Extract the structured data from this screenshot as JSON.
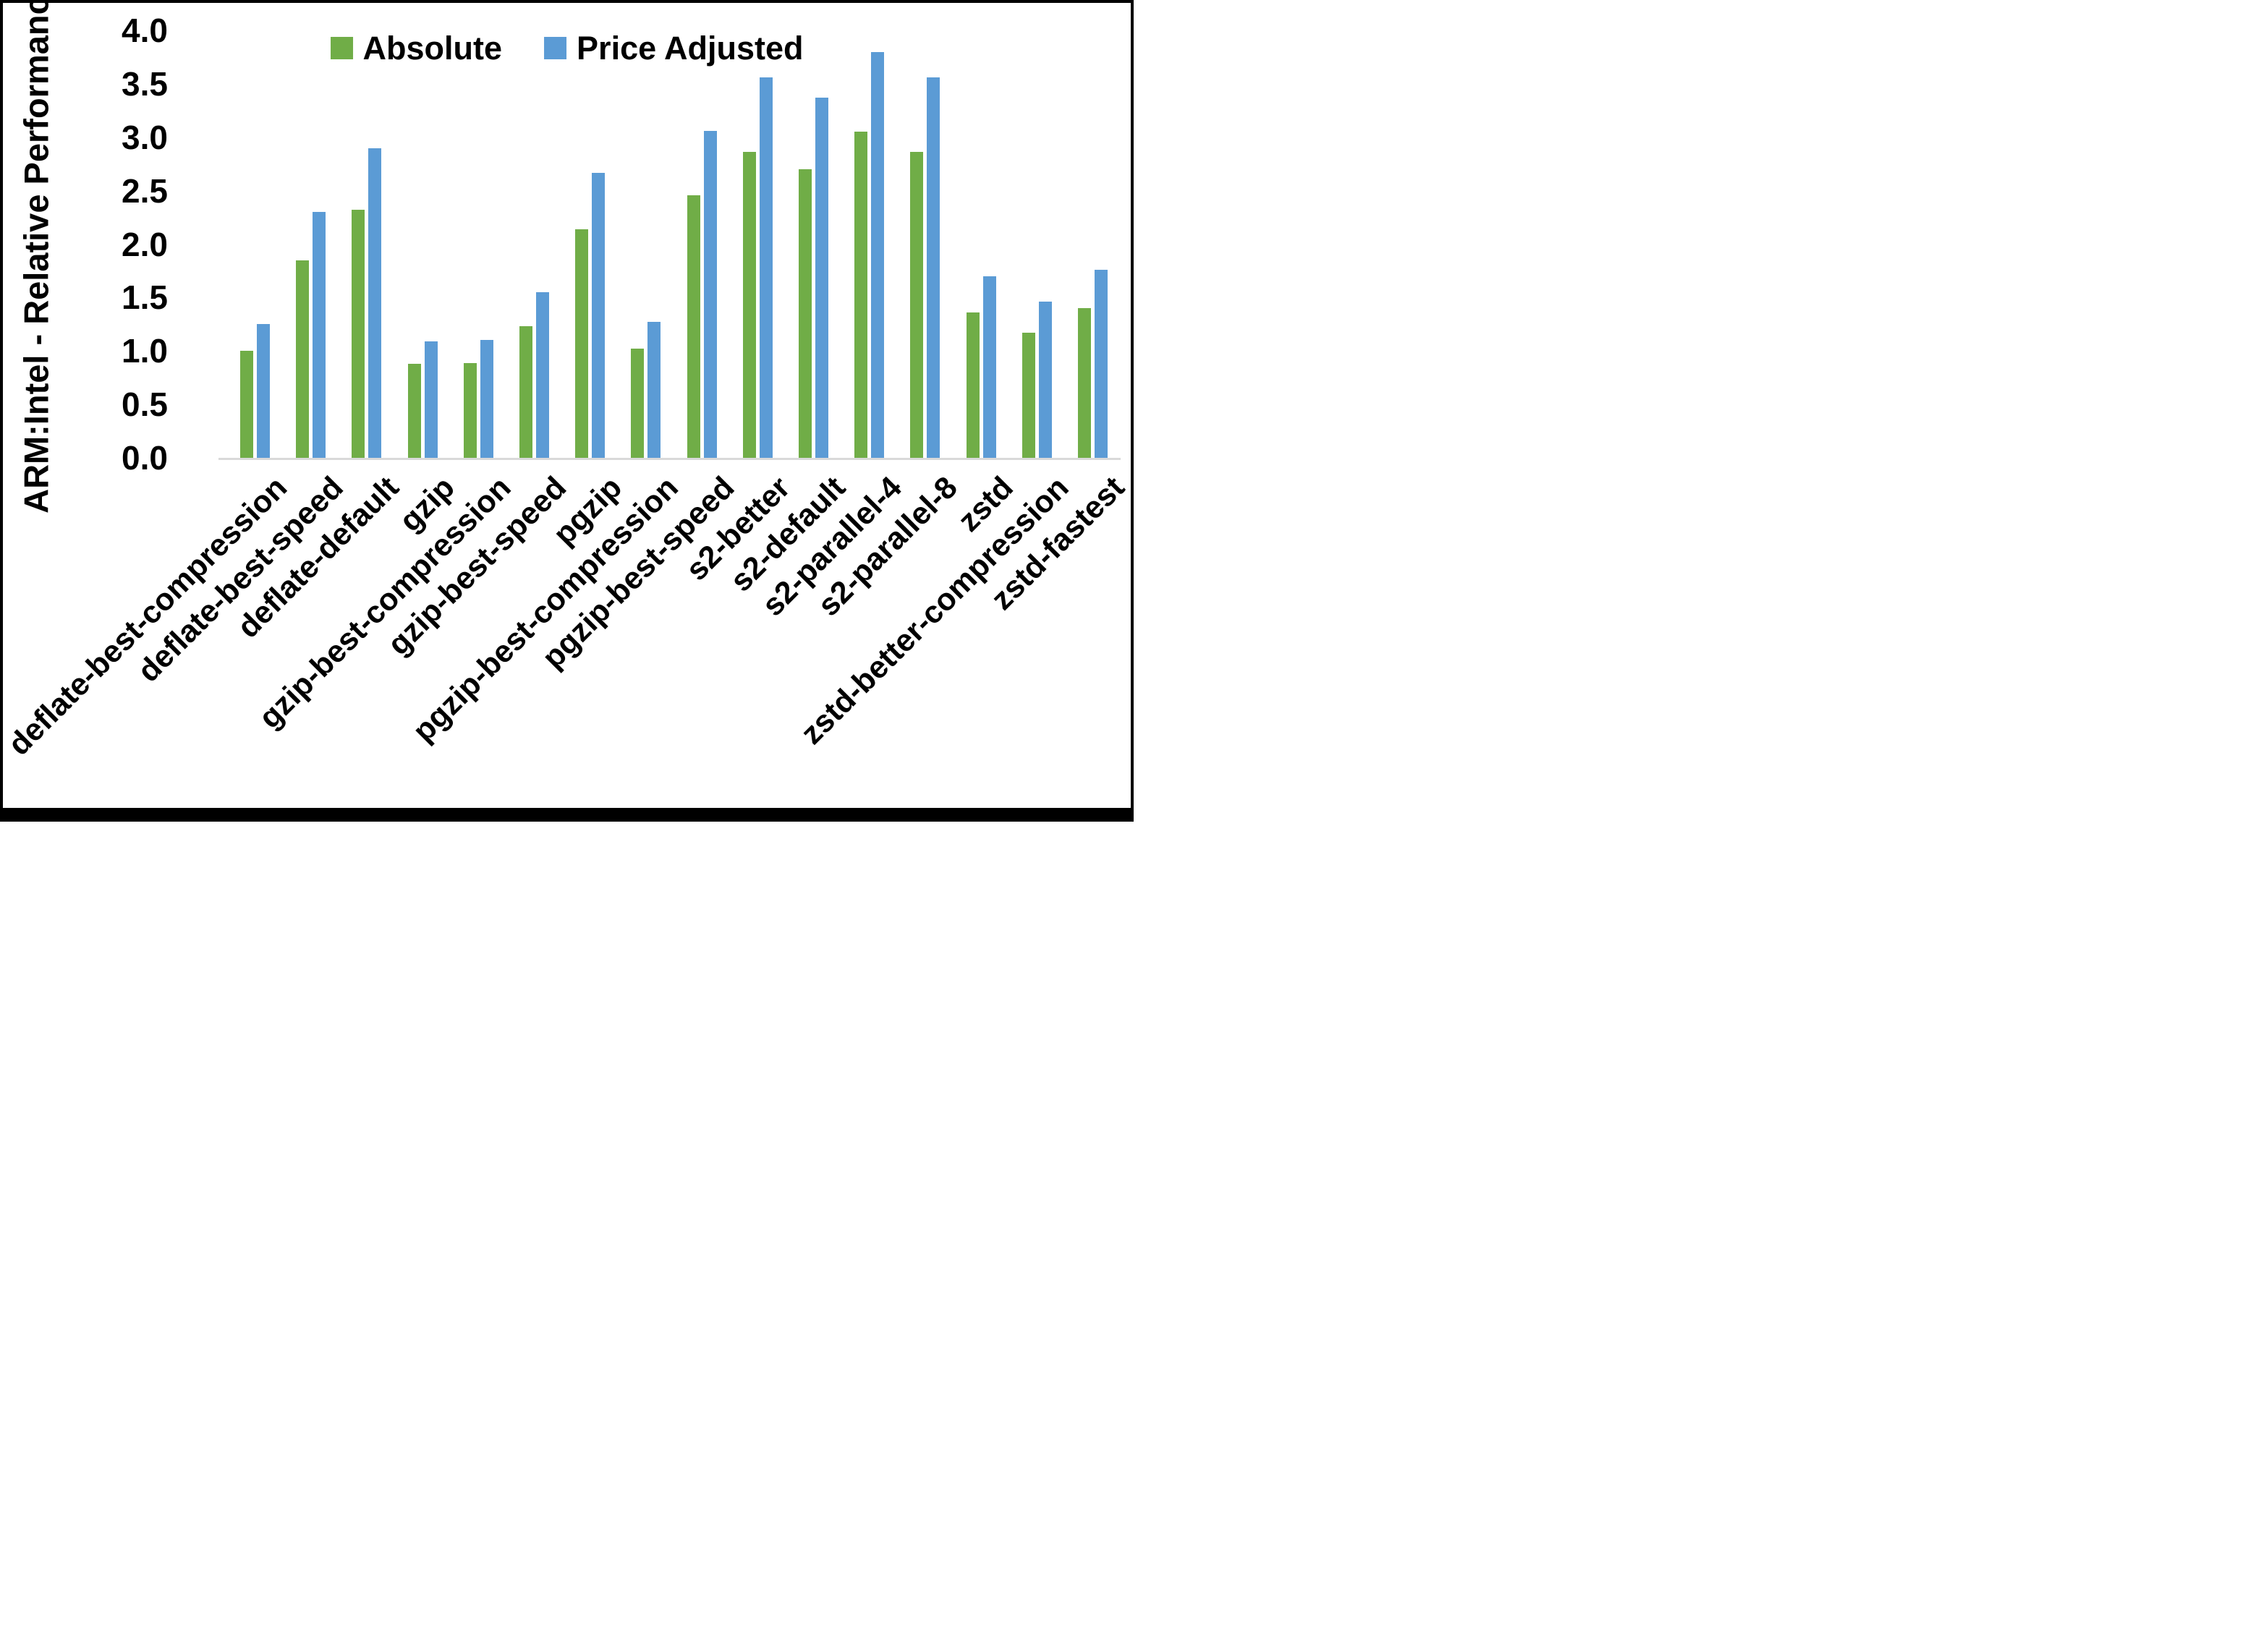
{
  "figure": {
    "background": "#ffffff",
    "frame_border_color": "#000000",
    "axis_line_color": "#d9d9d9"
  },
  "chart_data": {
    "type": "bar",
    "title": "",
    "xlabel": "",
    "ylabel": "ARM:Intel - Relative Performance",
    "ylim": [
      0,
      4
    ],
    "ytick_step": 0.5,
    "ytick_labels": [
      "0.0",
      "0.5",
      "1.0",
      "1.5",
      "2.0",
      "2.5",
      "3.0",
      "3.5",
      "4.0"
    ],
    "grid": false,
    "legend_position": "top-center",
    "categories": [
      "deflate-best-compression",
      "deflate-best-speed",
      "deflate-default",
      "gzip",
      "gzip-best-compression",
      "gzip-best-speed",
      "pgzip",
      "pgzip-best-compression",
      "pgzip-best-speed",
      "s2-better",
      "s2-default",
      "s2-parallel-4",
      "s2-parallel-8",
      "zstd",
      "zstd-better-compression",
      "zstd-fastest"
    ],
    "series": [
      {
        "name": "Absolute",
        "color": "#70AD47",
        "values": [
          1.0,
          1.85,
          2.32,
          0.88,
          0.89,
          1.23,
          2.14,
          1.02,
          2.46,
          2.86,
          2.7,
          3.05,
          2.86,
          1.36,
          1.17,
          1.4
        ]
      },
      {
        "name": "Price Adjusted",
        "color": "#5B9BD5",
        "values": [
          1.25,
          2.3,
          2.9,
          1.09,
          1.1,
          1.55,
          2.67,
          1.27,
          3.06,
          3.56,
          3.37,
          3.8,
          3.56,
          1.7,
          1.46,
          1.76
        ]
      }
    ]
  }
}
